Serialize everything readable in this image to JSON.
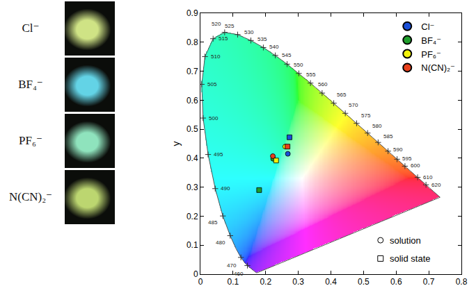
{
  "photos": [
    {
      "label": "Cl⁻",
      "color": "#cfe385"
    },
    {
      "label": "BF₄⁻",
      "color": "#63d3e6"
    },
    {
      "label": "PF₆⁻",
      "color": "#8fe3bd"
    },
    {
      "label": "N(CN)₂⁻",
      "color": "#bcd670"
    }
  ],
  "chart_data": {
    "type": "scatter",
    "ylabel": "y",
    "xlim": [
      0,
      0.8
    ],
    "xticks": [
      0,
      0.1,
      0.2,
      0.3,
      0.4,
      0.5,
      0.6,
      0.7,
      0.8
    ],
    "ylim": [
      0,
      0.9
    ],
    "yticks": [
      0,
      0.1,
      0.2,
      0.3,
      0.4,
      0.5,
      0.6,
      0.7,
      0.8,
      0.9
    ],
    "legend": "top right",
    "spectral_locus": {
      "x": [
        0.1741,
        0.1733,
        0.1714,
        0.1689,
        0.1644,
        0.1566,
        0.151,
        0.144,
        0.1355,
        0.1241,
        0.1096,
        0.0913,
        0.0687,
        0.0454,
        0.0235,
        0.0082,
        0.0039,
        0.0139,
        0.0389,
        0.0743,
        0.1142,
        0.1547,
        0.1929,
        0.2296,
        0.2658,
        0.3016,
        0.3373,
        0.3731,
        0.4087,
        0.4441,
        0.4788,
        0.5125,
        0.5448,
        0.5752,
        0.6029,
        0.627,
        0.6482,
        0.6658,
        0.6915,
        0.7079,
        0.719,
        0.726,
        0.73,
        0.7334,
        0.7347
      ],
      "y": [
        0.005,
        0.0048,
        0.0051,
        0.0069,
        0.0109,
        0.0177,
        0.0227,
        0.0297,
        0.0399,
        0.0578,
        0.0868,
        0.1327,
        0.2007,
        0.295,
        0.4127,
        0.5384,
        0.6548,
        0.7502,
        0.812,
        0.8338,
        0.8262,
        0.8059,
        0.7816,
        0.7543,
        0.7243,
        0.6923,
        0.6589,
        0.6245,
        0.5896,
        0.5547,
        0.5202,
        0.4866,
        0.4544,
        0.4242,
        0.3965,
        0.3725,
        0.3514,
        0.334,
        0.3083,
        0.292,
        0.2809,
        0.274,
        0.27,
        0.2666,
        0.2653
      ],
      "labels": [
        null,
        null,
        null,
        null,
        null,
        null,
        null,
        460,
        null,
        470,
        null,
        480,
        485,
        490,
        495,
        500,
        505,
        510,
        515,
        520,
        525,
        530,
        535,
        540,
        545,
        550,
        555,
        560,
        565,
        570,
        575,
        580,
        585,
        590,
        595,
        600,
        null,
        610,
        620,
        null,
        null,
        null,
        null,
        null,
        null
      ]
    },
    "marker_legend": [
      {
        "name": "solution",
        "marker": "circle"
      },
      {
        "name": "solid state",
        "marker": "square"
      }
    ],
    "series": [
      {
        "name": "Cl⁻",
        "color": "#1a4fd8",
        "points": [
          {
            "x": 0.268,
            "y": 0.415
          },
          {
            "x": 0.273,
            "y": 0.472
          }
        ]
      },
      {
        "name": "BF₄⁻",
        "color": "#1f9e2c",
        "points": [
          {
            "x": 0.223,
            "y": 0.398
          },
          {
            "x": 0.18,
            "y": 0.29
          }
        ]
      },
      {
        "name": "PF₆⁻",
        "color": "#f2f20a",
        "points": [
          {
            "x": 0.26,
            "y": 0.44
          },
          {
            "x": 0.232,
            "y": 0.392
          }
        ]
      },
      {
        "name": "N(CN)₂⁻",
        "color": "#e8401c",
        "points": [
          {
            "x": 0.222,
            "y": 0.407
          },
          {
            "x": 0.267,
            "y": 0.44
          }
        ]
      }
    ]
  }
}
